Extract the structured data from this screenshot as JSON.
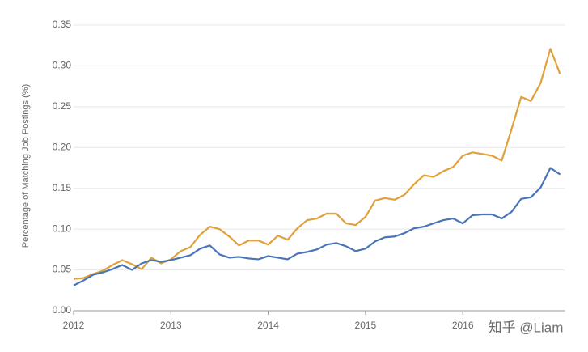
{
  "chart_data": {
    "type": "line",
    "y_label": "Percentage of Matching Job Postings (%)",
    "watermark": "知乎 @Liam",
    "x": [
      2012.0,
      2012.1,
      2012.2,
      2012.3,
      2012.4,
      2012.5,
      2012.6,
      2012.7,
      2012.8,
      2012.9,
      2013.0,
      2013.1,
      2013.2,
      2013.3,
      2013.4,
      2013.5,
      2013.6,
      2013.7,
      2013.8,
      2013.9,
      2014.0,
      2014.1,
      2014.2,
      2014.3,
      2014.4,
      2014.5,
      2014.6,
      2014.7,
      2014.8,
      2014.9,
      2015.0,
      2015.1,
      2015.2,
      2015.3,
      2015.4,
      2015.5,
      2015.6,
      2015.7,
      2015.8,
      2015.9,
      2016.0,
      2016.1,
      2016.2,
      2016.3,
      2016.4,
      2016.5,
      2016.6,
      2016.7,
      2016.8,
      2016.9,
      2017.0
    ],
    "series": [
      {
        "color": "#e0a03a",
        "values": [
          0.039,
          0.04,
          0.045,
          0.049,
          0.056,
          0.062,
          0.057,
          0.051,
          0.065,
          0.058,
          0.063,
          0.073,
          0.078,
          0.093,
          0.103,
          0.1,
          0.091,
          0.08,
          0.086,
          0.086,
          0.081,
          0.092,
          0.087,
          0.101,
          0.111,
          0.113,
          0.119,
          0.119,
          0.107,
          0.105,
          0.115,
          0.135,
          0.138,
          0.136,
          0.142,
          0.155,
          0.166,
          0.164,
          0.171,
          0.176,
          0.19,
          0.194,
          0.192,
          0.19,
          0.184,
          0.222,
          0.262,
          0.257,
          0.279,
          0.321,
          0.29
        ]
      },
      {
        "color": "#4a74b8",
        "values": [
          0.031,
          0.037,
          0.044,
          0.047,
          0.051,
          0.056,
          0.05,
          0.058,
          0.062,
          0.06,
          0.062,
          0.065,
          0.068,
          0.076,
          0.08,
          0.069,
          0.065,
          0.066,
          0.064,
          0.063,
          0.067,
          0.065,
          0.063,
          0.07,
          0.072,
          0.075,
          0.081,
          0.083,
          0.079,
          0.073,
          0.076,
          0.085,
          0.09,
          0.091,
          0.095,
          0.101,
          0.103,
          0.107,
          0.111,
          0.113,
          0.107,
          0.117,
          0.118,
          0.118,
          0.113,
          0.121,
          0.137,
          0.139,
          0.151,
          0.175,
          0.167
        ]
      }
    ],
    "xlim": [
      2012,
      2017.05
    ],
    "xticks": [
      2012,
      2013,
      2014,
      2015,
      2016
    ],
    "ylim": [
      0,
      0.35
    ],
    "yticks": [
      {
        "value": 0,
        "label": "0.00"
      },
      0.05,
      {
        "value": 0.1,
        "label": "0.10"
      },
      0.15,
      {
        "value": 0.2,
        "label": "0.20"
      },
      0.25,
      {
        "value": 0.3,
        "label": "0.30"
      },
      0.35
    ],
    "grid": true
  }
}
